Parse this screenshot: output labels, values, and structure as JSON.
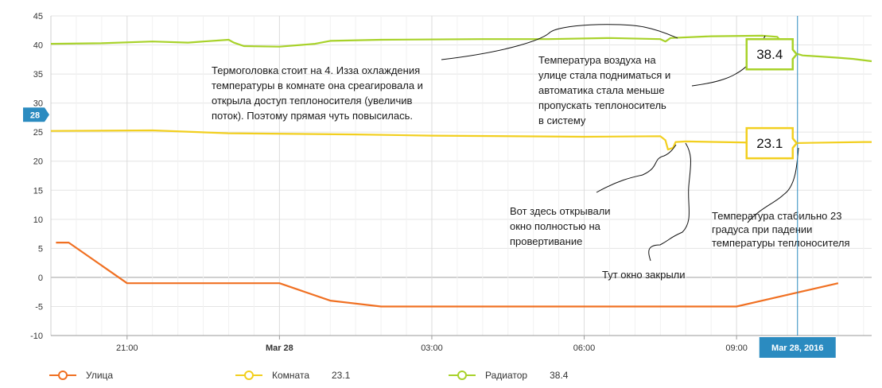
{
  "chart_data": {
    "type": "line",
    "ylim": [
      -10,
      45
    ],
    "yticks": [
      "45",
      "40",
      "35",
      "30",
      "25",
      "20",
      "15",
      "10",
      "5",
      "0",
      "-5",
      "-10"
    ],
    "xticks": [
      {
        "t": 21.0,
        "label": "21:00",
        "bold": false
      },
      {
        "t": 24.0,
        "label": "Mar 28",
        "bold": true
      },
      {
        "t": 27.0,
        "label": "03:00",
        "bold": false
      },
      {
        "t": 30.0,
        "label": "06:00",
        "bold": false
      },
      {
        "t": 33.0,
        "label": "09:00",
        "bold": false
      }
    ],
    "xrange_hours_from_mar27_0000": [
      19.5,
      35.66
    ],
    "series": [
      {
        "name": "Улица",
        "color": "#f07022",
        "points": [
          [
            19.6,
            6
          ],
          [
            19.85,
            6
          ],
          [
            21.0,
            -1
          ],
          [
            24.0,
            -1
          ],
          [
            25.0,
            -4
          ],
          [
            26.0,
            -5
          ],
          [
            33.0,
            -5
          ],
          [
            35.0,
            -1
          ]
        ]
      },
      {
        "name": "Комната",
        "color": "#f2cf1f",
        "points": [
          [
            19.5,
            25.2
          ],
          [
            21.5,
            25.3
          ],
          [
            23.0,
            24.8
          ],
          [
            25.5,
            24.6
          ],
          [
            27.0,
            24.4
          ],
          [
            30.0,
            24.2
          ],
          [
            31.5,
            24.3
          ],
          [
            31.6,
            23.6
          ],
          [
            31.65,
            22.0
          ],
          [
            31.75,
            22.3
          ],
          [
            31.8,
            23.3
          ],
          [
            32.0,
            23.4
          ],
          [
            34.0,
            23.1
          ],
          [
            35.5,
            23.3
          ],
          [
            35.66,
            23.3
          ]
        ]
      },
      {
        "name": "Радиатор",
        "color": "#a8d22a",
        "points": [
          [
            19.5,
            40.2
          ],
          [
            20.5,
            40.3
          ],
          [
            21.5,
            40.6
          ],
          [
            22.2,
            40.4
          ],
          [
            22.5,
            40.6
          ],
          [
            23.0,
            40.9
          ],
          [
            23.1,
            40.4
          ],
          [
            23.3,
            39.8
          ],
          [
            24.0,
            39.7
          ],
          [
            24.7,
            40.2
          ],
          [
            25.0,
            40.7
          ],
          [
            26.0,
            40.9
          ],
          [
            28.0,
            41.0
          ],
          [
            29.3,
            41.0
          ],
          [
            30.5,
            41.2
          ],
          [
            31.5,
            41.0
          ],
          [
            31.6,
            40.6
          ],
          [
            31.7,
            41.2
          ],
          [
            32.5,
            41.5
          ],
          [
            33.5,
            41.6
          ],
          [
            33.8,
            41.4
          ],
          [
            33.9,
            40.4
          ],
          [
            34.1,
            38.7
          ],
          [
            34.3,
            38.2
          ],
          [
            35.0,
            37.8
          ],
          [
            35.3,
            37.6
          ],
          [
            35.66,
            37.2
          ]
        ]
      }
    ],
    "crosshair": {
      "t": 34.2,
      "date_label": "Mar 28, 2016",
      "y_label": "28",
      "y_value": 28
    },
    "tooltips": [
      {
        "series": "Радиатор",
        "text": "38.4",
        "value": 38.4
      },
      {
        "series": "Комната",
        "text": "23.1",
        "value": 23.1
      }
    ],
    "annotations": [
      {
        "lines": [
          "Термоголовка стоит на 4. Изза охлаждения",
          "температуры в комнате она среагировала и",
          "открыла доступ теплоносителя (увеличив",
          "поток). Поэтому прямая чуть повысилась."
        ]
      },
      {
        "lines": [
          "Температура воздуха на",
          "улице стала подниматься и",
          "автоматика стала меньше",
          "пропускать теплоноситель",
          "в систему"
        ]
      },
      {
        "lines": [
          "Вот здесь открывали",
          "окно полностью на",
          "провертивание"
        ]
      },
      {
        "lines": [
          "Тут окно закрыли"
        ]
      },
      {
        "lines": [
          "Температура стабильно 23",
          "градуса при падении",
          "температуры теплоносителя"
        ]
      }
    ],
    "grid": true
  },
  "legend": [
    {
      "name": "Улица",
      "value": "",
      "color": "#f07022"
    },
    {
      "name": "Комната",
      "value": "23.1",
      "color": "#f2cf1f"
    },
    {
      "name": "Радиатор",
      "value": "38.4",
      "color": "#a8d22a"
    }
  ]
}
